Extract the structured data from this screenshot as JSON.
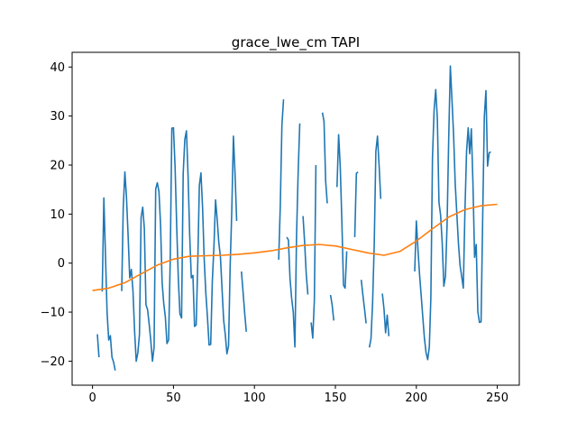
{
  "chart_data": {
    "type": "line",
    "title": "grace_lwe_cm TAPI",
    "xlabel": "",
    "ylabel": "",
    "xlim": [
      -12.6,
      263.6
    ],
    "ylim": [
      -24.9,
      43.0
    ],
    "x_ticks": [
      0,
      50,
      100,
      150,
      200,
      250
    ],
    "y_ticks": [
      -20,
      -10,
      0,
      10,
      20,
      30,
      40
    ],
    "grid": false,
    "legend": "none",
    "series": [
      {
        "color": "#1f77b4",
        "segments": [
          {
            "x": [
              3,
              4,
              5,
              6
            ],
            "y": [
              -14.5,
              -19.2,
              null,
              -5.8
            ]
          },
          {
            "x": [
              6,
              7,
              8,
              9,
              10,
              11,
              12,
              13,
              14,
              15,
              16
            ],
            "y": [
              -5.8,
              13.3,
              1.5,
              -10.2,
              -15.7,
              -14.8,
              -19.2,
              -20.2,
              -21.9,
              null,
              null
            ]
          },
          {
            "x": [
              18,
              19,
              20,
              21,
              22,
              23,
              24,
              25,
              26,
              27,
              28,
              29,
              30,
              31,
              32,
              33,
              34,
              35,
              36,
              37,
              38,
              39,
              40,
              41,
              42,
              43,
              44,
              45,
              46,
              47,
              48,
              49,
              50,
              51,
              52,
              53,
              54,
              55,
              56,
              57,
              58,
              59,
              60,
              61,
              62,
              63,
              64,
              65,
              66,
              67,
              68,
              69,
              70,
              71,
              72,
              73,
              74,
              75,
              76,
              77,
              78,
              79,
              80,
              81,
              82,
              83,
              84,
              85,
              86,
              87,
              88,
              89,
              90,
              91,
              92,
              93,
              94,
              95,
              96,
              97,
              98,
              99,
              100,
              101,
              102,
              103,
              104,
              105,
              106
            ],
            "y": [
              -5.7,
              11.3,
              18.6,
              13.4,
              5.6,
              -3.0,
              -1.3,
              -5.7,
              -13.9,
              -20.0,
              -18.3,
              -14.5,
              9.3,
              11.4,
              7.1,
              -8.5,
              -9.5,
              -12.5,
              -15.9,
              -20.0,
              -17.2,
              15.1,
              16.4,
              14.6,
              7.8,
              -3.9,
              -8.2,
              -11.0,
              -16.4,
              -15.7,
              0.4,
              27.5,
              27.6,
              19.6,
              7.5,
              -3.2,
              -10.4,
              -11.2,
              18.3,
              25.2,
              27.0,
              17.8,
              5.7,
              -3.0,
              -2.5,
              -12.9,
              -12.6,
              0.4,
              15.8,
              18.4,
              11.3,
              0.8,
              -6.1,
              -11.0,
              -16.7,
              -16.6,
              -3.7,
              3.4,
              12.9,
              8.9,
              4.2,
              1.3,
              -5.3,
              -11.7,
              -14.6,
              -18.5,
              -16.9,
              -0.6,
              10.7,
              25.9,
              18.2,
              8.6,
              null,
              null,
              -1.7,
              -5.9,
              -10.2,
              -14.0,
              null,
              null,
              null,
              null,
              null,
              null,
              null,
              null,
              null,
              null,
              null
            ]
          },
          {
            "x": [
              115,
              116,
              117,
              118,
              119,
              120,
              121,
              122,
              123
            ],
            "y": [
              0.7,
              11.7,
              28.1,
              33.4,
              null,
              5.3,
              4.7,
              -3.2,
              -7.2
            ]
          },
          {
            "x": [
              123,
              124,
              125,
              126,
              127,
              128,
              129,
              130,
              131,
              132,
              133,
              134,
              135,
              136,
              137,
              138,
              139,
              140,
              141,
              142,
              143,
              144,
              145,
              146,
              147,
              148,
              149
            ],
            "y": [
              -7.2,
              -10.0,
              -17.1,
              5.4,
              18.4,
              28.5,
              null,
              9.6,
              4.2,
              -2.3,
              -6.4,
              null,
              -12.1,
              -15.3,
              -7.5,
              20.0,
              null,
              null,
              null,
              30.7,
              28.9,
              16.8,
              12.2,
              null,
              -6.5,
              -8.5,
              -11.7
            ]
          },
          {
            "x": [
              151,
              152,
              153,
              154,
              155,
              156,
              157,
              158,
              159
            ],
            "y": [
              15.5,
              26.2,
              19.7,
              8.5,
              -4.5,
              -5.1,
              2.4,
              null,
              null
            ]
          },
          {
            "x": [
              162,
              163,
              164
            ],
            "y": [
              5.3,
              18.3,
              18.6
            ]
          },
          {
            "x": [
              166,
              167,
              168,
              169,
              170,
              171,
              172,
              173,
              174,
              175,
              176,
              177,
              178
            ],
            "y": [
              -3.4,
              -6.5,
              -9.3,
              -12.3,
              null,
              -17.2,
              -15.4,
              -8.0,
              3.8,
              22.8,
              25.9,
              19.9,
              13.1
            ]
          },
          {
            "x": [
              179,
              180,
              181,
              182,
              183
            ],
            "y": [
              -6.2,
              -9.3,
              -14.2,
              -10.6,
              -14.9
            ]
          },
          {
            "x": [
              197,
              198,
              199,
              200,
              201,
              202,
              203,
              204,
              205,
              206,
              207,
              208,
              209,
              210,
              211,
              212,
              213,
              214,
              215,
              216,
              217,
              218,
              219,
              220,
              221,
              222,
              223,
              224,
              225,
              226,
              227,
              228,
              229,
              230,
              231,
              232,
              233,
              234,
              235,
              236,
              237,
              238,
              239,
              240,
              241,
              242,
              243,
              244,
              245,
              246,
              247,
              248,
              249,
              250,
              251,
              252
            ],
            "y": [
              -15.0,
              null,
              -1.7,
              8.6,
              2.8,
              -2.4,
              -6.7,
              -11.1,
              -15.4,
              -18.3,
              -19.7,
              -17.1,
              -7.1,
              21.5,
              31.2,
              35.4,
              29.5,
              12.4,
              9.8,
              4.1,
              -4.7,
              -2.7,
              7.9,
              25.4,
              40.2,
              33.4,
              26.3,
              16.3,
              10.1,
              4.0,
              -0.5,
              -2.7,
              -5.1,
              10.6,
              22.7,
              27.6,
              22.3,
              27.4,
              16.2,
              1.2,
              3.8,
              -9.9,
              -12.1,
              -12.0,
              9.3,
              29.8,
              35.2,
              19.8,
              22.5,
              22.7,
              null,
              null,
              null,
              null,
              null,
              null
            ]
          }
        ]
      },
      {
        "color": "#ff7f0e",
        "x": [
          0,
          10,
          20,
          30,
          40,
          50,
          60,
          70,
          80,
          90,
          100,
          110,
          120,
          130,
          140,
          150,
          160,
          170,
          180,
          190,
          200,
          210,
          220,
          230,
          240,
          250
        ],
        "y": [
          -5.6,
          -5.1,
          -4.0,
          -2.2,
          -0.4,
          0.8,
          1.4,
          1.5,
          1.6,
          1.8,
          2.1,
          2.5,
          3.1,
          3.6,
          3.8,
          3.5,
          2.8,
          2.1,
          1.6,
          2.4,
          4.5,
          7.0,
          9.4,
          10.9,
          11.7,
          12.0
        ]
      }
    ]
  }
}
